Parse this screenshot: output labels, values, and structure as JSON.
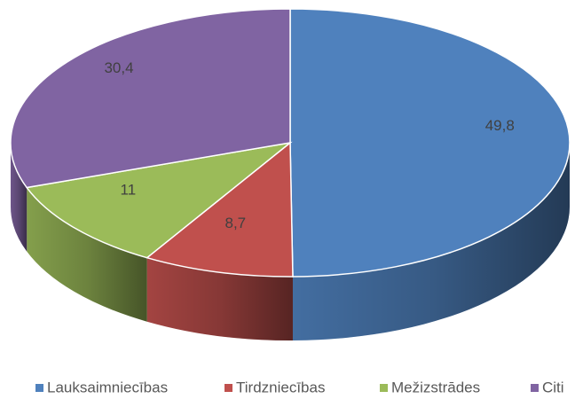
{
  "chart_data": {
    "type": "pie3d",
    "categories": [
      "Lauksaimniecības",
      "Tirdzniecības",
      "Mežizstrādes",
      "Citi"
    ],
    "values": [
      49.8,
      8.7,
      11,
      30.4
    ],
    "value_labels": [
      "49,8",
      "8,7",
      "11",
      "30,4"
    ],
    "colors": [
      "#4f81bd",
      "#c0504d",
      "#9bbb59",
      "#8064a2"
    ],
    "legend": "bottom"
  }
}
